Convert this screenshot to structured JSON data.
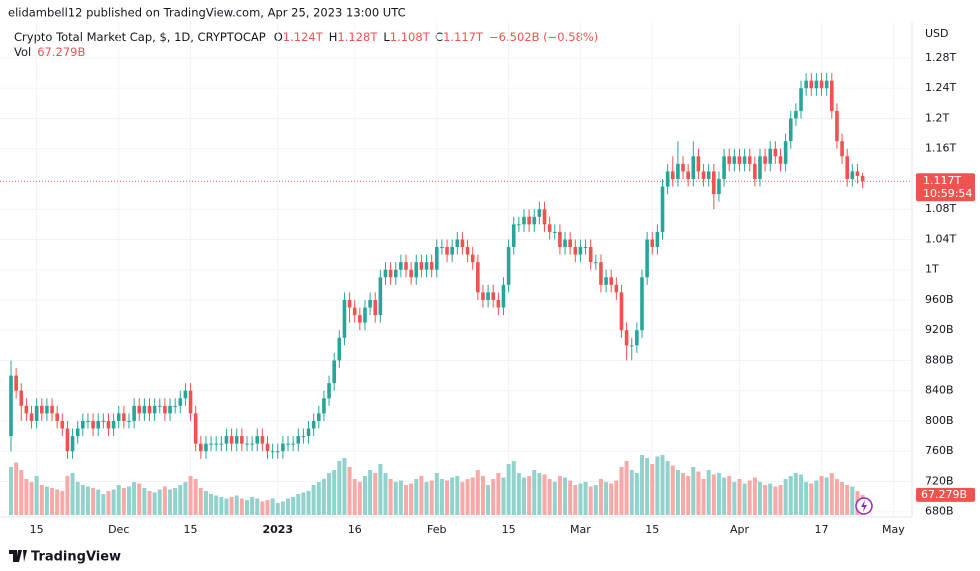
{
  "header": {
    "byline": "elidambell12 published on TradingView.com, Apr 25, 2023 13:00 UTC"
  },
  "legend": {
    "symbol": "Crypto Total Market Cap, $, 1D, CRYPTOCAP",
    "open_key": "O",
    "open": "1.124T",
    "high_key": "H",
    "high": "1.128T",
    "low_key": "L",
    "low": "1.108T",
    "close_key": "C",
    "close": "1.117T",
    "change": "−6.502B (−0.58%)",
    "volume_key": "Vol",
    "volume": "67.279B"
  },
  "chart_data": {
    "type": "candlestick",
    "currency": "USD",
    "categories": [
      null,
      null,
      null,
      null,
      null,
      "15",
      null,
      null,
      null,
      null,
      null,
      null,
      null,
      null,
      null,
      null,
      null,
      null,
      null,
      null,
      null,
      "Dec",
      null,
      null,
      null,
      null,
      null,
      null,
      null,
      null,
      null,
      null,
      null,
      null,
      null,
      "15",
      null,
      null,
      null,
      null,
      null,
      null,
      null,
      null,
      null,
      null,
      null,
      null,
      null,
      null,
      null,
      null,
      "2023",
      null,
      null,
      null,
      null,
      null,
      null,
      null,
      null,
      null,
      null,
      null,
      null,
      null,
      null,
      "16",
      null,
      null,
      null,
      null,
      null,
      null,
      null,
      null,
      null,
      null,
      null,
      null,
      null,
      null,
      null,
      "Feb",
      null,
      null,
      null,
      null,
      null,
      null,
      null,
      null,
      null,
      null,
      null,
      null,
      null,
      "15",
      null,
      null,
      null,
      null,
      null,
      null,
      null,
      null,
      null,
      null,
      null,
      null,
      null,
      "Mar",
      null,
      null,
      null,
      null,
      null,
      null,
      null,
      null,
      null,
      null,
      null,
      null,
      null,
      "15",
      null,
      null,
      null,
      null,
      null,
      null,
      null,
      null,
      null,
      null,
      null,
      null,
      null,
      null,
      null,
      null,
      "Apr",
      null,
      null,
      null,
      null,
      null,
      null,
      null,
      null,
      null,
      null,
      null,
      null,
      null,
      null,
      null,
      "17",
      null,
      null,
      null,
      null,
      null,
      null,
      null,
      null,
      null,
      null,
      null,
      null,
      null,
      "May"
    ],
    "open": [
      0.78,
      0.86,
      0.84,
      0.82,
      0.81,
      0.8,
      0.82,
      0.81,
      0.82,
      0.81,
      0.8,
      0.79,
      0.76,
      0.78,
      0.79,
      0.8,
      0.8,
      0.79,
      0.8,
      0.8,
      0.79,
      0.8,
      0.81,
      0.8,
      0.8,
      0.82,
      0.81,
      0.82,
      0.81,
      0.82,
      0.82,
      0.81,
      0.82,
      0.82,
      0.83,
      0.84,
      0.81,
      0.77,
      0.76,
      0.77,
      0.77,
      0.77,
      0.77,
      0.78,
      0.77,
      0.78,
      0.77,
      0.77,
      0.77,
      0.78,
      0.77,
      0.76,
      0.76,
      0.76,
      0.77,
      0.77,
      0.77,
      0.78,
      0.78,
      0.79,
      0.8,
      0.81,
      0.83,
      0.85,
      0.88,
      0.91,
      0.96,
      0.95,
      0.94,
      0.93,
      0.95,
      0.96,
      0.94,
      0.99,
      1.0,
      0.99,
      1.0,
      1.01,
      1.0,
      0.99,
      1.01,
      1.0,
      1.01,
      1.0,
      1.03,
      1.03,
      1.02,
      1.03,
      1.04,
      1.03,
      1.02,
      1.01,
      0.97,
      0.96,
      0.97,
      0.96,
      0.95,
      0.98,
      1.03,
      1.06,
      1.06,
      1.07,
      1.06,
      1.07,
      1.08,
      1.06,
      1.05,
      1.05,
      1.03,
      1.04,
      1.03,
      1.02,
      1.03,
      1.03,
      1.01,
      1.01,
      0.98,
      0.99,
      0.98,
      0.97,
      0.92,
      0.9,
      0.9,
      0.92,
      0.99,
      1.04,
      1.03,
      1.05,
      1.11,
      1.13,
      1.12,
      1.14,
      1.13,
      1.12,
      1.15,
      1.13,
      1.12,
      1.13,
      1.1,
      1.12,
      1.15,
      1.14,
      1.15,
      1.14,
      1.15,
      1.14,
      1.12,
      1.15,
      1.14,
      1.16,
      1.15,
      1.14,
      1.17,
      1.2,
      1.21,
      1.24,
      1.25,
      1.24,
      1.25,
      1.24,
      1.25,
      1.21,
      1.17,
      1.15,
      1.12,
      1.13,
      1.124,
      null,
      null,
      null,
      null,
      null,
      null
    ],
    "high": [
      0.88,
      0.87,
      0.85,
      0.83,
      0.82,
      0.83,
      0.83,
      0.83,
      0.83,
      0.82,
      0.81,
      0.8,
      0.79,
      0.8,
      0.81,
      0.81,
      0.81,
      0.81,
      0.81,
      0.81,
      0.81,
      0.82,
      0.82,
      0.81,
      0.83,
      0.83,
      0.83,
      0.83,
      0.83,
      0.83,
      0.83,
      0.83,
      0.83,
      0.84,
      0.85,
      0.85,
      0.82,
      0.78,
      0.78,
      0.78,
      0.78,
      0.78,
      0.79,
      0.79,
      0.79,
      0.79,
      0.78,
      0.78,
      0.79,
      0.79,
      0.78,
      0.77,
      0.77,
      0.78,
      0.78,
      0.78,
      0.79,
      0.79,
      0.8,
      0.81,
      0.82,
      0.84,
      0.86,
      0.89,
      0.92,
      0.97,
      0.97,
      0.96,
      0.95,
      0.96,
      0.97,
      0.97,
      1.0,
      1.01,
      1.01,
      1.01,
      1.02,
      1.02,
      1.01,
      1.02,
      1.02,
      1.02,
      1.02,
      1.04,
      1.04,
      1.04,
      1.04,
      1.05,
      1.05,
      1.04,
      1.03,
      1.02,
      0.98,
      0.98,
      0.98,
      0.97,
      0.99,
      1.04,
      1.07,
      1.07,
      1.08,
      1.08,
      1.08,
      1.09,
      1.09,
      1.07,
      1.06,
      1.06,
      1.05,
      1.05,
      1.04,
      1.04,
      1.04,
      1.04,
      1.02,
      1.02,
      1.0,
      1.0,
      0.99,
      0.98,
      0.93,
      0.91,
      0.93,
      1.0,
      1.05,
      1.05,
      1.06,
      1.12,
      1.14,
      1.15,
      1.17,
      1.15,
      1.14,
      1.17,
      1.16,
      1.14,
      1.14,
      1.14,
      1.13,
      1.16,
      1.16,
      1.16,
      1.16,
      1.16,
      1.16,
      1.15,
      1.16,
      1.16,
      1.17,
      1.17,
      1.16,
      1.18,
      1.21,
      1.22,
      1.25,
      1.26,
      1.26,
      1.26,
      1.26,
      1.26,
      1.26,
      1.22,
      1.18,
      1.16,
      1.14,
      1.14,
      1.128,
      null,
      null,
      null,
      null,
      null,
      null
    ],
    "low": [
      0.76,
      0.83,
      0.8,
      0.8,
      0.79,
      0.79,
      0.8,
      0.8,
      0.8,
      0.79,
      0.78,
      0.75,
      0.75,
      0.77,
      0.78,
      0.79,
      0.78,
      0.78,
      0.79,
      0.78,
      0.78,
      0.79,
      0.79,
      0.79,
      0.79,
      0.8,
      0.8,
      0.8,
      0.8,
      0.81,
      0.8,
      0.8,
      0.81,
      0.81,
      0.82,
      0.8,
      0.76,
      0.75,
      0.75,
      0.76,
      0.76,
      0.76,
      0.76,
      0.76,
      0.76,
      0.76,
      0.76,
      0.76,
      0.76,
      0.76,
      0.75,
      0.75,
      0.75,
      0.75,
      0.76,
      0.76,
      0.76,
      0.77,
      0.77,
      0.78,
      0.79,
      0.8,
      0.82,
      0.84,
      0.87,
      0.9,
      0.93,
      0.93,
      0.92,
      0.92,
      0.94,
      0.93,
      0.93,
      0.98,
      0.98,
      0.98,
      0.99,
      0.99,
      0.98,
      0.98,
      0.99,
      0.99,
      0.99,
      0.99,
      1.02,
      1.01,
      1.01,
      1.02,
      1.02,
      1.01,
      1.0,
      0.96,
      0.95,
      0.95,
      0.95,
      0.94,
      0.94,
      0.97,
      1.02,
      1.05,
      1.05,
      1.05,
      1.05,
      1.06,
      1.05,
      1.04,
      1.04,
      1.02,
      1.02,
      1.02,
      1.01,
      1.01,
      1.02,
      1.0,
      1.0,
      0.97,
      0.97,
      0.97,
      0.96,
      0.91,
      0.88,
      0.88,
      0.89,
      0.91,
      0.98,
      1.02,
      1.02,
      1.04,
      1.1,
      1.11,
      1.11,
      1.12,
      1.11,
      1.11,
      1.12,
      1.11,
      1.11,
      1.08,
      1.09,
      1.11,
      1.13,
      1.13,
      1.13,
      1.13,
      1.13,
      1.11,
      1.11,
      1.13,
      1.13,
      1.14,
      1.13,
      1.13,
      1.16,
      1.19,
      1.2,
      1.23,
      1.23,
      1.23,
      1.23,
      1.23,
      1.2,
      1.16,
      1.14,
      1.11,
      1.11,
      1.114,
      1.108,
      null,
      null,
      null,
      null,
      null,
      null
    ],
    "close": [
      0.86,
      0.84,
      0.82,
      0.81,
      0.8,
      0.82,
      0.81,
      0.82,
      0.81,
      0.8,
      0.79,
      0.76,
      0.78,
      0.79,
      0.8,
      0.8,
      0.79,
      0.8,
      0.8,
      0.79,
      0.8,
      0.81,
      0.8,
      0.8,
      0.82,
      0.81,
      0.82,
      0.81,
      0.82,
      0.82,
      0.81,
      0.82,
      0.82,
      0.83,
      0.84,
      0.81,
      0.77,
      0.76,
      0.77,
      0.77,
      0.77,
      0.77,
      0.78,
      0.77,
      0.78,
      0.77,
      0.77,
      0.77,
      0.78,
      0.77,
      0.76,
      0.76,
      0.76,
      0.77,
      0.77,
      0.77,
      0.78,
      0.78,
      0.79,
      0.8,
      0.81,
      0.83,
      0.85,
      0.88,
      0.91,
      0.96,
      0.95,
      0.94,
      0.93,
      0.95,
      0.96,
      0.94,
      0.99,
      1.0,
      0.99,
      1.0,
      1.01,
      1.0,
      0.99,
      1.01,
      1.0,
      1.01,
      1.0,
      1.03,
      1.03,
      1.02,
      1.03,
      1.04,
      1.03,
      1.02,
      1.01,
      0.97,
      0.96,
      0.97,
      0.96,
      0.95,
      0.98,
      1.03,
      1.06,
      1.06,
      1.07,
      1.06,
      1.07,
      1.08,
      1.06,
      1.05,
      1.05,
      1.03,
      1.04,
      1.03,
      1.02,
      1.03,
      1.03,
      1.01,
      1.01,
      0.98,
      0.99,
      0.98,
      0.97,
      0.92,
      0.9,
      0.9,
      0.92,
      0.99,
      1.04,
      1.03,
      1.05,
      1.11,
      1.13,
      1.12,
      1.14,
      1.13,
      1.12,
      1.15,
      1.13,
      1.12,
      1.13,
      1.1,
      1.12,
      1.15,
      1.14,
      1.15,
      1.14,
      1.15,
      1.14,
      1.12,
      1.15,
      1.14,
      1.16,
      1.15,
      1.14,
      1.17,
      1.2,
      1.21,
      1.24,
      1.25,
      1.24,
      1.25,
      1.24,
      1.25,
      1.21,
      1.17,
      1.15,
      1.12,
      1.13,
      1.124,
      1.117,
      null,
      null,
      null,
      null,
      null,
      null
    ],
    "volume": [
      160,
      175,
      150,
      120,
      110,
      130,
      100,
      95,
      90,
      85,
      80,
      130,
      140,
      110,
      100,
      95,
      90,
      85,
      70,
      80,
      85,
      100,
      90,
      95,
      110,
      105,
      90,
      80,
      75,
      85,
      95,
      85,
      90,
      100,
      110,
      130,
      120,
      90,
      80,
      70,
      65,
      60,
      55,
      60,
      65,
      55,
      50,
      60,
      55,
      45,
      50,
      55,
      40,
      45,
      55,
      60,
      70,
      75,
      80,
      100,
      110,
      120,
      140,
      150,
      180,
      190,
      160,
      120,
      110,
      130,
      150,
      140,
      170,
      140,
      120,
      110,
      115,
      100,
      105,
      120,
      130,
      110,
      115,
      140,
      120,
      115,
      125,
      130,
      110,
      120,
      125,
      150,
      130,
      100,
      120,
      140,
      125,
      170,
      180,
      140,
      125,
      130,
      150,
      140,
      135,
      120,
      110,
      130,
      125,
      115,
      100,
      105,
      110,
      95,
      100,
      120,
      110,
      105,
      115,
      160,
      180,
      150,
      140,
      200,
      190,
      170,
      195,
      200,
      180,
      165,
      150,
      140,
      130,
      160,
      145,
      120,
      150,
      135,
      140,
      125,
      130,
      110,
      120,
      105,
      115,
      125,
      110,
      100,
      105,
      95,
      100,
      120,
      130,
      140,
      135,
      110,
      105,
      115,
      130,
      125,
      140,
      120,
      110,
      100,
      95,
      80,
      67.279,
      null,
      null,
      null,
      null,
      null,
      null
    ],
    "up_color": "#26a69a",
    "down_color": "#ef5350",
    "ylim": [
      0.673,
      1.317
    ],
    "yticks": [
      {
        "value": 1.28,
        "label": "1.28T"
      },
      {
        "value": 1.24,
        "label": "1.24T"
      },
      {
        "value": 1.2,
        "label": "1.2T"
      },
      {
        "value": 1.16,
        "label": "1.16T"
      },
      {
        "value": 1.08,
        "label": "1.08T"
      },
      {
        "value": 1.04,
        "label": "1.04T"
      },
      {
        "value": 1,
        "label": "1T"
      },
      {
        "value": 0.96,
        "label": "960B"
      },
      {
        "value": 0.92,
        "label": "920B"
      },
      {
        "value": 0.88,
        "label": "880B"
      },
      {
        "value": 0.84,
        "label": "840B"
      },
      {
        "value": 0.8,
        "label": "800B"
      },
      {
        "value": 0.76,
        "label": "760B"
      },
      {
        "value": 0.72,
        "label": "720B"
      },
      {
        "value": 0.68,
        "label": "680B"
      }
    ],
    "last_price_label": "1.117T",
    "countdown": "10:59:54",
    "volume_label": "67.279B",
    "grid": true
  },
  "footer": {
    "brand": "TradingView"
  }
}
